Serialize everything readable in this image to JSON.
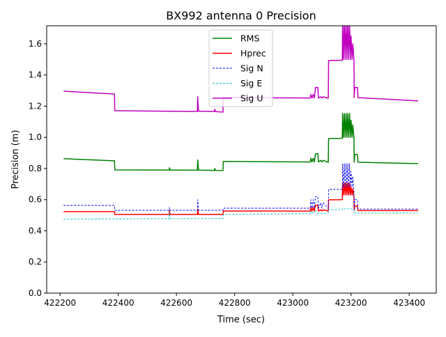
{
  "chart_data": {
    "type": "line",
    "title": "BX992 antenna 0 Precision",
    "xlabel": "Time (sec)",
    "ylabel": "Precision (m)",
    "xlim": [
      422154,
      423493
    ],
    "ylim": [
      0,
      1.716
    ],
    "xticks": [
      422200,
      422400,
      422600,
      422800,
      423000,
      423200,
      423400
    ],
    "yticks": [
      0.0,
      0.2,
      0.4,
      0.6,
      0.8,
      1.0,
      1.2,
      1.4,
      1.6
    ],
    "ytick_labels": [
      "0.0",
      "0.2",
      "0.4",
      "0.6",
      "0.8",
      "1.0",
      "1.2",
      "1.4",
      "1.6"
    ],
    "grid": false,
    "legend_position": "upper-center",
    "series": [
      {
        "name": "RMS",
        "color": "#008000",
        "style": "solid",
        "points": [
          [
            422212,
            0.863
          ],
          [
            422387,
            0.849
          ],
          [
            422388,
            0.791
          ],
          [
            422575,
            0.79
          ],
          [
            422576,
            0.805
          ],
          [
            422578,
            0.79
          ],
          [
            422672,
            0.789
          ],
          [
            422673,
            0.855
          ],
          [
            422676,
            0.79
          ],
          [
            422730,
            0.788
          ],
          [
            422732,
            0.8
          ],
          [
            422734,
            0.788
          ],
          [
            422760,
            0.787
          ],
          [
            422761,
            0.845
          ],
          [
            423060,
            0.842
          ],
          [
            423062,
            0.865
          ],
          [
            423066,
            0.842
          ],
          [
            423070,
            0.865
          ],
          [
            423074,
            0.842
          ],
          [
            423078,
            0.895
          ],
          [
            423086,
            0.895
          ],
          [
            423088,
            0.842
          ],
          [
            423096,
            0.852
          ],
          [
            423100,
            0.842
          ],
          [
            423104,
            0.852
          ],
          [
            423122,
            0.84
          ],
          [
            423123,
            0.992
          ],
          [
            423170,
            0.994
          ],
          [
            423171,
            1.153
          ],
          [
            423174,
            1.0
          ],
          [
            423177,
            1.153
          ],
          [
            423180,
            1.0
          ],
          [
            423183,
            1.153
          ],
          [
            423186,
            1.0
          ],
          [
            423189,
            1.153
          ],
          [
            423192,
            1.0
          ],
          [
            423195,
            1.153
          ],
          [
            423198,
            1.0
          ],
          [
            423200,
            1.11
          ],
          [
            423204,
            1.0
          ],
          [
            423206,
            1.08
          ],
          [
            423210,
            1.0
          ],
          [
            423211,
            0.84
          ],
          [
            423213,
            0.89
          ],
          [
            423222,
            0.89
          ],
          [
            423224,
            0.84
          ],
          [
            423431,
            0.831
          ]
        ]
      },
      {
        "name": "Hprec",
        "color": "#ff0000",
        "style": "solid",
        "points": [
          [
            422212,
            0.523
          ],
          [
            422387,
            0.523
          ],
          [
            422388,
            0.505
          ],
          [
            422575,
            0.505
          ],
          [
            422576,
            0.53
          ],
          [
            422578,
            0.505
          ],
          [
            422672,
            0.505
          ],
          [
            422673,
            0.54
          ],
          [
            422676,
            0.505
          ],
          [
            422760,
            0.505
          ],
          [
            422761,
            0.527
          ],
          [
            423060,
            0.527
          ],
          [
            423062,
            0.55
          ],
          [
            423066,
            0.527
          ],
          [
            423070,
            0.55
          ],
          [
            423074,
            0.527
          ],
          [
            423078,
            0.565
          ],
          [
            423086,
            0.565
          ],
          [
            423088,
            0.527
          ],
          [
            423096,
            0.535
          ],
          [
            423100,
            0.527
          ],
          [
            423104,
            0.535
          ],
          [
            423122,
            0.527
          ],
          [
            423123,
            0.599
          ],
          [
            423170,
            0.6
          ],
          [
            423171,
            0.706
          ],
          [
            423174,
            0.63
          ],
          [
            423177,
            0.706
          ],
          [
            423180,
            0.63
          ],
          [
            423183,
            0.706
          ],
          [
            423186,
            0.63
          ],
          [
            423189,
            0.706
          ],
          [
            423192,
            0.63
          ],
          [
            423195,
            0.706
          ],
          [
            423198,
            0.63
          ],
          [
            423200,
            0.68
          ],
          [
            423204,
            0.63
          ],
          [
            423206,
            0.67
          ],
          [
            423210,
            0.62
          ],
          [
            423211,
            0.53
          ],
          [
            423213,
            0.56
          ],
          [
            423222,
            0.56
          ],
          [
            423224,
            0.53
          ],
          [
            423431,
            0.53
          ]
        ]
      },
      {
        "name": "Sig N",
        "color": "#0000ff",
        "style": "dashed",
        "points": [
          [
            422212,
            0.563
          ],
          [
            422387,
            0.563
          ],
          [
            422388,
            0.532
          ],
          [
            422575,
            0.532
          ],
          [
            422576,
            0.55
          ],
          [
            422578,
            0.532
          ],
          [
            422672,
            0.532
          ],
          [
            422673,
            0.6
          ],
          [
            422676,
            0.532
          ],
          [
            422760,
            0.532
          ],
          [
            422761,
            0.545
          ],
          [
            423060,
            0.545
          ],
          [
            423062,
            0.6
          ],
          [
            423066,
            0.545
          ],
          [
            423070,
            0.6
          ],
          [
            423074,
            0.545
          ],
          [
            423078,
            0.62
          ],
          [
            423086,
            0.62
          ],
          [
            423088,
            0.545
          ],
          [
            423096,
            0.58
          ],
          [
            423100,
            0.545
          ],
          [
            423104,
            0.58
          ],
          [
            423122,
            0.545
          ],
          [
            423123,
            0.666
          ],
          [
            423170,
            0.666
          ],
          [
            423171,
            0.831
          ],
          [
            423174,
            0.68
          ],
          [
            423177,
            0.831
          ],
          [
            423180,
            0.68
          ],
          [
            423183,
            0.831
          ],
          [
            423186,
            0.68
          ],
          [
            423189,
            0.831
          ],
          [
            423192,
            0.68
          ],
          [
            423195,
            0.831
          ],
          [
            423198,
            0.68
          ],
          [
            423200,
            0.78
          ],
          [
            423204,
            0.68
          ],
          [
            423206,
            0.75
          ],
          [
            423210,
            0.66
          ],
          [
            423211,
            0.54
          ],
          [
            423213,
            0.6
          ],
          [
            423222,
            0.6
          ],
          [
            423224,
            0.54
          ],
          [
            423431,
            0.54
          ]
        ]
      },
      {
        "name": "Sig E",
        "color": "#00bfbf",
        "style": "dashed",
        "points": [
          [
            422212,
            0.474
          ],
          [
            422387,
            0.477
          ],
          [
            422388,
            0.476
          ],
          [
            422575,
            0.478
          ],
          [
            422576,
            0.52
          ],
          [
            422578,
            0.478
          ],
          [
            422760,
            0.48
          ],
          [
            422761,
            0.505
          ],
          [
            423060,
            0.51
          ],
          [
            423062,
            0.525
          ],
          [
            423066,
            0.51
          ],
          [
            423078,
            0.53
          ],
          [
            423088,
            0.51
          ],
          [
            423122,
            0.515
          ],
          [
            423123,
            0.536
          ],
          [
            423170,
            0.536
          ],
          [
            423171,
            0.545
          ],
          [
            423180,
            0.54
          ],
          [
            423190,
            0.545
          ],
          [
            423200,
            0.54
          ],
          [
            423210,
            0.54
          ],
          [
            423211,
            0.514
          ],
          [
            423431,
            0.515
          ]
        ]
      },
      {
        "name": "Sig U",
        "color": "#bf00bf",
        "style": "solid",
        "points": [
          [
            422212,
            1.296
          ],
          [
            422387,
            1.278
          ],
          [
            422388,
            1.171
          ],
          [
            422672,
            1.166
          ],
          [
            422673,
            1.26
          ],
          [
            422676,
            1.168
          ],
          [
            422730,
            1.166
          ],
          [
            422732,
            1.18
          ],
          [
            422734,
            1.165
          ],
          [
            422760,
            1.162
          ],
          [
            422761,
            1.256
          ],
          [
            423060,
            1.252
          ],
          [
            423062,
            1.275
          ],
          [
            423066,
            1.252
          ],
          [
            423070,
            1.275
          ],
          [
            423074,
            1.252
          ],
          [
            423078,
            1.32
          ],
          [
            423086,
            1.32
          ],
          [
            423088,
            1.252
          ],
          [
            423096,
            1.26
          ],
          [
            423100,
            1.252
          ],
          [
            423104,
            1.26
          ],
          [
            423122,
            1.251
          ],
          [
            423123,
            1.493
          ],
          [
            423170,
            1.495
          ],
          [
            423171,
            1.75
          ],
          [
            423174,
            1.5
          ],
          [
            423177,
            1.75
          ],
          [
            423180,
            1.5
          ],
          [
            423183,
            1.75
          ],
          [
            423186,
            1.5
          ],
          [
            423189,
            1.75
          ],
          [
            423192,
            1.5
          ],
          [
            423195,
            1.75
          ],
          [
            423198,
            1.5
          ],
          [
            423200,
            1.65
          ],
          [
            423204,
            1.5
          ],
          [
            423206,
            1.6
          ],
          [
            423210,
            1.5
          ],
          [
            423211,
            1.255
          ],
          [
            423213,
            1.32
          ],
          [
            423222,
            1.32
          ],
          [
            423224,
            1.255
          ],
          [
            423431,
            1.234
          ]
        ]
      }
    ]
  }
}
